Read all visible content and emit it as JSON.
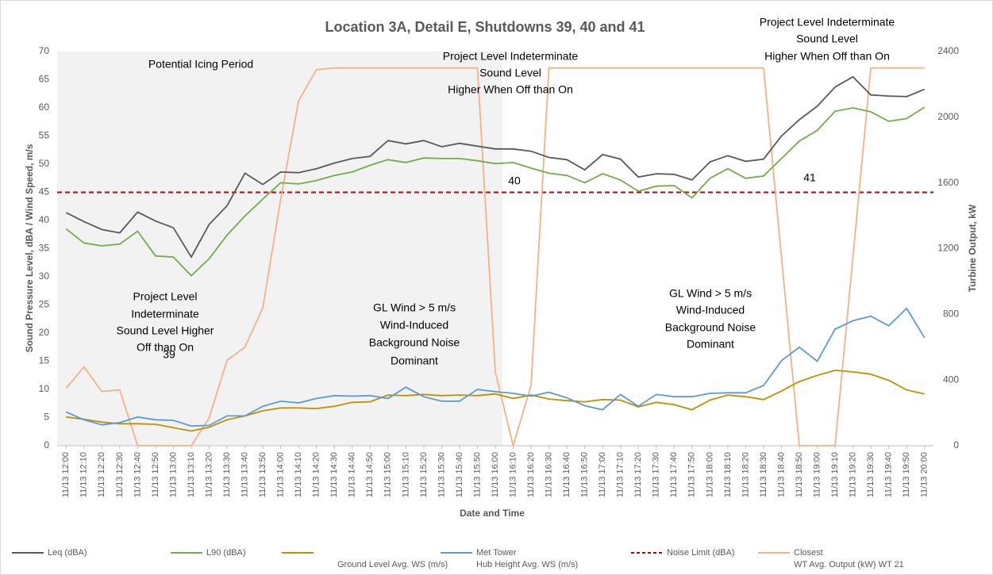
{
  "chart_data": {
    "type": "line",
    "title": "Location 3A, Detail E, Shutdowns 39, 40 and 41",
    "x_label": "Date and Time",
    "y_label": "Sound Pressure Level, dBA / Wind Speed, m/s",
    "y2_label": "Turbine Output, kW",
    "categories": [
      "11/13 12:00",
      "11/13 12:10",
      "11/13 12:20",
      "11/13 12:30",
      "11/13 12:40",
      "11/13 12:50",
      "11/13 13:00",
      "11/13 13:10",
      "11/13 13:20",
      "11/13 13:30",
      "11/13 13:40",
      "11/13 13:50",
      "11/13 14:00",
      "11/13 14:10",
      "11/13 14:20",
      "11/13 14:30",
      "11/13 14:40",
      "11/13 14:50",
      "11/13 15:00",
      "11/13 15:10",
      "11/13 15:20",
      "11/13 15:30",
      "11/13 15:40",
      "11/13 15:50",
      "11/13 16:00",
      "11/13 16:10",
      "11/13 16:20",
      "11/13 16:30",
      "11/13 16:40",
      "11/13 16:50",
      "11/13 17:00",
      "11/13 17:10",
      "11/13 17:20",
      "11/13 17:30",
      "11/13 17:40",
      "11/13 17:50",
      "11/13 18:00",
      "11/13 18:10",
      "11/13 18:20",
      "11/13 18:30",
      "11/13 18:40",
      "11/13 18:50",
      "11/13 19:00",
      "11/13 19:10",
      "11/13 19:20",
      "11/13 19:30",
      "11/13 19:40",
      "11/13 19:50",
      "11/13 20:00"
    ],
    "ylim": [
      0,
      70
    ],
    "yticks": [
      0,
      5,
      10,
      15,
      20,
      25,
      30,
      35,
      40,
      45,
      50,
      55,
      60,
      65,
      70
    ],
    "y2lim": [
      0,
      2400
    ],
    "y2ticks": [
      0,
      400,
      800,
      1200,
      1600,
      2000,
      2400
    ],
    "grid": false,
    "series": [
      {
        "name": [
          "Leq (dBA)"
        ],
        "color": "#595959",
        "values": [
          41.4,
          39.8,
          38.4,
          37.8,
          41.5,
          39.9,
          38.7,
          33.5,
          39.3,
          42.6,
          48.4,
          46.4,
          48.6,
          48.5,
          49.2,
          50.2,
          51.0,
          51.4,
          54.2,
          53.6,
          54.2,
          53.1,
          53.7,
          53.2,
          52.7,
          52.7,
          52.3,
          51.2,
          50.8,
          49.0,
          51.7,
          50.9,
          47.7,
          48.3,
          48.2,
          47.2,
          50.4,
          51.5,
          50.5,
          50.9,
          55.0,
          57.9,
          60.3,
          63.7,
          65.5,
          62.3,
          62.1,
          62.0,
          63.3
        ]
      },
      {
        "name": [
          "L90 (dBA)"
        ],
        "color": "#70ad47",
        "values": [
          38.5,
          36.0,
          35.5,
          35.8,
          38.1,
          33.7,
          33.5,
          30.2,
          33.2,
          37.4,
          40.8,
          43.8,
          46.7,
          46.5,
          47.1,
          48.0,
          48.6,
          49.8,
          50.8,
          50.3,
          51.1,
          51.0,
          51.0,
          50.6,
          50.1,
          50.3,
          49.3,
          48.4,
          48.0,
          46.7,
          48.3,
          47.2,
          45.2,
          46.1,
          46.2,
          44.0,
          47.5,
          49.2,
          47.5,
          47.9,
          51.0,
          54.1,
          56.0,
          59.4,
          60.0,
          59.3,
          57.6,
          58.1,
          60.1
        ]
      },
      {
        "name": [
          "Ground Level Avg. WS (m/s)"
        ],
        "color": "#bf9000",
        "values": [
          5.1,
          4.7,
          4.2,
          3.9,
          3.9,
          3.8,
          3.2,
          2.6,
          3.3,
          4.6,
          5.3,
          6.2,
          6.7,
          6.7,
          6.6,
          7.0,
          7.7,
          7.8,
          9.0,
          8.9,
          9.1,
          8.9,
          9.0,
          8.9,
          9.2,
          8.4,
          9.0,
          8.3,
          8.0,
          7.8,
          8.2,
          8.1,
          6.9,
          7.7,
          7.3,
          6.4,
          8.1,
          9.0,
          8.7,
          8.2,
          9.7,
          11.4,
          12.5,
          13.4,
          13.1,
          12.7,
          11.6,
          9.9,
          9.2
        ]
      },
      {
        "name": [
          "Met Tower",
          "Hub Height Avg. WS (m/s)"
        ],
        "color": "#5b9bd5",
        "values": [
          6.0,
          4.6,
          3.7,
          4.1,
          5.1,
          4.6,
          4.5,
          3.5,
          3.6,
          5.3,
          5.3,
          7.0,
          7.9,
          7.6,
          8.4,
          8.9,
          8.8,
          8.9,
          8.4,
          10.4,
          8.7,
          7.9,
          7.9,
          10.0,
          9.6,
          9.3,
          8.8,
          9.5,
          8.5,
          7.1,
          6.4,
          9.1,
          7.0,
          9.1,
          8.7,
          8.7,
          9.3,
          9.4,
          9.4,
          10.7,
          15.1,
          17.5,
          15.0,
          20.7,
          22.2,
          23.0,
          21.3,
          24.4,
          19.2
        ]
      },
      {
        "name": [
          "Closest",
          "WT Avg. Output (kW) WT 21"
        ],
        "color": "#f4b183",
        "axis": "y2",
        "values": [
          350,
          480,
          330,
          340,
          0,
          0,
          0,
          0,
          170,
          520,
          600,
          840,
          1500,
          2100,
          2290,
          2300,
          2300,
          2300,
          2300,
          2300,
          2300,
          2300,
          2300,
          2300,
          450,
          0,
          370,
          2300,
          2300,
          2300,
          2300,
          2300,
          2300,
          2300,
          2300,
          2300,
          2300,
          2300,
          2300,
          2300,
          1150,
          0,
          0,
          0,
          1150,
          2300,
          2300,
          2300,
          2300
        ]
      }
    ],
    "hline": {
      "name": [
        "Noise Limit (dBA)"
      ],
      "value": 45,
      "color": "#c00000"
    },
    "annotations": [
      {
        "lines": [
          "Potential Icing Period"
        ]
      },
      {
        "lines": [
          "Project Level Indeterminate",
          "Sound Level",
          "Higher When Off than On"
        ]
      },
      {
        "lines": [
          "Project Level Indeterminate",
          "Sound Level",
          "Higher When Off than On"
        ]
      },
      {
        "lines": [
          "Project Level",
          "Indeterminate",
          "Sound Level Higher",
          "Off than On"
        ]
      },
      {
        "lines": [
          "39"
        ]
      },
      {
        "lines": [
          "GL Wind > 5 m/s",
          "Wind-Induced",
          "Background Noise",
          "Dominant"
        ]
      },
      {
        "lines": [
          "GL Wind > 5 m/s",
          "Wind-Induced",
          "Background Noise",
          "Dominant"
        ]
      },
      {
        "lines": [
          "40"
        ]
      },
      {
        "lines": [
          "41"
        ]
      }
    ]
  }
}
